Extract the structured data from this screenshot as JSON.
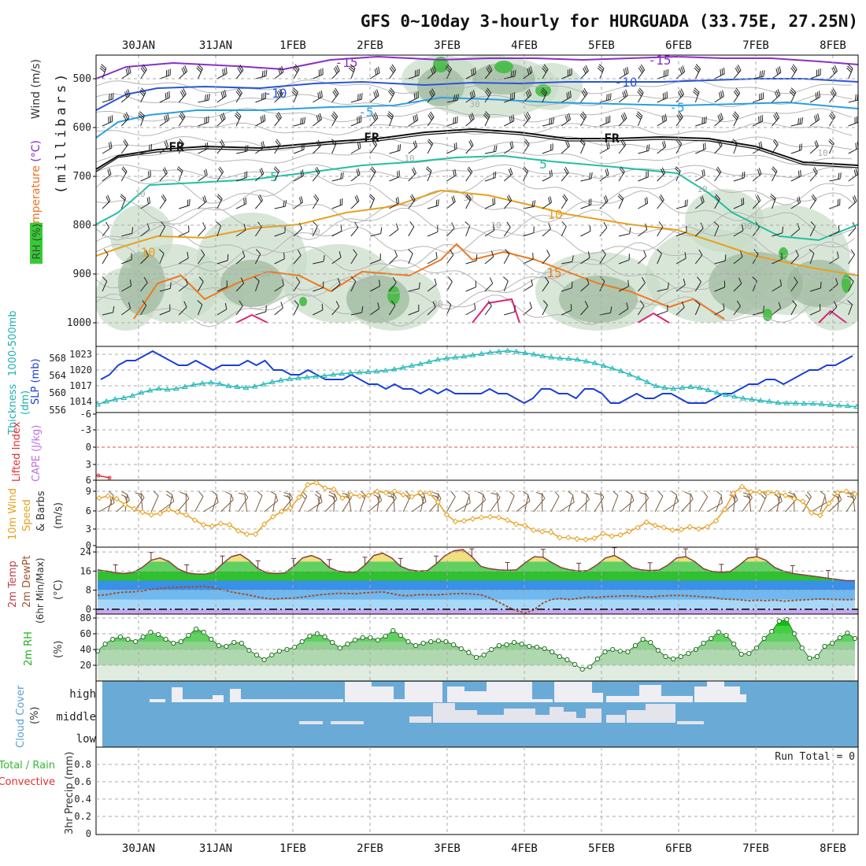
{
  "title": "GFS 0~10day 3-hourly for HURGUADA (33.75E, 27.25N)",
  "dates": [
    "30JAN",
    "31JAN",
    "1FEB",
    "2FEB",
    "3FEB",
    "4FEB",
    "5FEB",
    "6FEB",
    "7FEB",
    "8FEB"
  ],
  "panels": {
    "upper": {
      "label_wind": "Wind (m/s)",
      "label_temp1": "Temperature ",
      "label_temp2": "(°C)",
      "label_rh": "RH (%)",
      "label_mb": "(millibars)",
      "yticks": [
        "500",
        "600",
        "700",
        "800",
        "900",
        "1000"
      ],
      "contour_labels": [
        "-15",
        "-15",
        "-10",
        "-10",
        "-5",
        "-5",
        "FR",
        "FR",
        "FR",
        "5",
        "5",
        "10",
        "10",
        "10",
        "15",
        "10",
        "10",
        "10",
        "30",
        "30",
        "30",
        "30",
        "10",
        "10",
        "30"
      ]
    },
    "slp": {
      "label_thk1": "Thickness",
      "label_thk2": "1000-500mb",
      "label_thk3": "(dm)",
      "label_slp": "SLP (mb)",
      "yticks_slp": [
        "1014",
        "1017",
        "1020",
        "1023"
      ],
      "yticks_thk": [
        "556",
        "560",
        "564",
        "568"
      ]
    },
    "cape": {
      "label_li": "Lifted Index",
      "label_cape": "CAPE (J/kg)",
      "yticks": [
        "-6",
        "-3",
        "0",
        "3",
        "6"
      ]
    },
    "wind10": {
      "label1": "10m Wind",
      "label2": "Speed",
      "label3": "& Barbs",
      "label4": "(m/s)",
      "yticks": [
        "0",
        "3",
        "6",
        "9"
      ]
    },
    "temp2m": {
      "label1": "2m Temp",
      "label2": "2m DewPt",
      "label3": "(6hr Min/Max)",
      "label4": "(°C)",
      "yticks": [
        "0",
        "8",
        "16",
        "24"
      ]
    },
    "rh2m": {
      "label1": "2m RH",
      "label2": "(%)",
      "yticks": [
        "20",
        "40",
        "60",
        "80"
      ]
    },
    "cloud": {
      "label1": "Cloud Cover",
      "label2": "(%)",
      "levels": [
        "high",
        "middle",
        "low"
      ]
    },
    "precip": {
      "label1": "Total / Rain",
      "label2": "Convective",
      "label3": "3hr Precip (mm)",
      "run_total": "Run Total = 0",
      "yticks": [
        "0",
        "0.2",
        "0.4",
        "0.6",
        "0.8"
      ]
    }
  },
  "colors": {
    "slp": "#1a3fd6",
    "thickness": "#20b8b8",
    "wind10": "#e8a020",
    "temp": "#f06020",
    "dewpt": "#a05030",
    "rh2m": "#20c020",
    "cloud_bg": "#6aaad6",
    "cloud_fill": "#eeeef4",
    "li": "#e03030"
  },
  "chart_data": [
    {
      "type": "line",
      "title": "SLP (mb)",
      "ylim": [
        1011,
        1025
      ],
      "values": [
        1018,
        1019,
        1021,
        1022,
        1022,
        1023,
        1024,
        1023,
        1022,
        1021,
        1021,
        1022,
        1021,
        1020,
        1021,
        1021,
        1021,
        1022,
        1021,
        1022,
        1020,
        1020,
        1019,
        1019,
        1020,
        1019,
        1018,
        1018,
        1018,
        1019,
        1018,
        1017,
        1017,
        1016,
        1017,
        1016,
        1016,
        1015,
        1016,
        1015,
        1016,
        1015,
        1015,
        1015,
        1015,
        1016,
        1015,
        1015,
        1014,
        1013,
        1014,
        1016,
        1016,
        1015,
        1015,
        1014,
        1016,
        1016,
        1015,
        1013,
        1013,
        1014,
        1015,
        1014,
        1014,
        1015,
        1015,
        1014,
        1013,
        1013,
        1013,
        1014,
        1015,
        1015,
        1016,
        1017,
        1017,
        1018,
        1018,
        1017,
        1018,
        1019,
        1020,
        1020,
        1021,
        1021,
        1022,
        1023
      ]
    },
    {
      "type": "line",
      "title": "Thickness 1000-500mb (dm)",
      "ylim": [
        555,
        570
      ],
      "values": [
        556.8,
        557.5,
        558,
        558.3,
        558.8,
        559.5,
        560,
        560.4,
        560.2,
        560.4,
        560.8,
        561.3,
        561.6,
        561.8,
        561.5,
        561,
        560.8,
        560.6,
        560.9,
        561.4,
        561.9,
        562.3,
        562.6,
        562.8,
        563,
        563.2,
        563.3,
        563.6,
        563.8,
        564,
        564.1,
        564.2,
        564.3,
        564.5,
        564.8,
        565.2,
        565.6,
        566,
        566.5,
        567,
        567.3,
        567.5,
        567.7,
        568,
        568.3,
        568.6,
        568.8,
        569,
        568.8,
        568.5,
        568.2,
        567.8,
        567.5,
        567.3,
        567.2,
        567,
        566.6,
        566.2,
        565.6,
        565,
        564.4,
        563.6,
        562.8,
        561.9,
        561,
        560.6,
        560.4,
        560.6,
        560.8,
        560.6,
        560.1,
        559.5,
        559,
        558.6,
        558.2,
        558,
        557.7,
        557.5,
        557.2,
        557.1,
        557.1,
        557,
        557,
        556.9,
        556.7,
        556.6,
        556.5,
        556.3
      ]
    },
    {
      "type": "line",
      "title": "10m Wind Speed (m/s)",
      "ylim": [
        0,
        10
      ],
      "values": [
        7.1,
        7.4,
        7.0,
        6.1,
        5.5,
        5.0,
        4.6,
        4.8,
        5.4,
        5.0,
        4.6,
        3.8,
        3.1,
        2.9,
        3.3,
        3.1,
        2.2,
        1.7,
        1.7,
        3.2,
        4.3,
        5.1,
        5.6,
        7.2,
        9.1,
        9.4,
        8.6,
        8.4,
        7.1,
        7.6,
        7.4,
        7.5,
        8.1,
        7.9,
        8.1,
        7.6,
        7.3,
        7.9,
        7.8,
        6.5,
        4.6,
        3.6,
        3.7,
        4.0,
        4.2,
        4.3,
        4.2,
        3.8,
        3.2,
        3.0,
        2.3,
        2.1,
        2.0,
        1.2,
        1.2,
        1.0,
        0.9,
        1.1,
        1.8,
        1.4,
        1.6,
        2.1,
        2.7,
        3.5,
        3.0,
        2.7,
        2.3,
        2.4,
        2.8,
        2.5,
        2.8,
        3.7,
        5.4,
        7.8,
        8.8,
        8.0,
        8.0,
        7.9,
        7.9,
        7.5,
        7.0,
        6.6,
        4.9,
        4.5,
        6.3,
        7.9,
        8.1,
        7.7
      ]
    },
    {
      "type": "area",
      "title": "2m Temp (°C)",
      "ylim": [
        -2,
        26
      ],
      "values": [
        16.5,
        16,
        15.3,
        15,
        15.5,
        17.5,
        20.5,
        21.5,
        20,
        17,
        15.3,
        14.8,
        14.7,
        15.5,
        19,
        22,
        23,
        20.5,
        17,
        15.3,
        15,
        15.2,
        18,
        21.5,
        22.5,
        21,
        17.5,
        16,
        15.5,
        15.5,
        18.5,
        22.5,
        23.5,
        21.5,
        18,
        16.5,
        16,
        16.2,
        19,
        22.5,
        24.5,
        25,
        22,
        18,
        17,
        16.5,
        16.3,
        16.5,
        19.5,
        22,
        21.8,
        19.5,
        17.5,
        16.5,
        16,
        16.2,
        18.5,
        21.5,
        22.5,
        20.5,
        17.5,
        16.5,
        16.2,
        16.4,
        18.5,
        21.5,
        22,
        20,
        17,
        15.8,
        15.5,
        15.8,
        18.5,
        21.5,
        22,
        20.5,
        17.5,
        16,
        15,
        14.5,
        14,
        13.5,
        13,
        12.5,
        12,
        12
      ]
    },
    {
      "type": "line",
      "title": "2m DewPt (°C)",
      "ylim": [
        -2,
        26
      ],
      "values": [
        5.8,
        6.1,
        6.8,
        7.2,
        7.3,
        7.7,
        8.3,
        8.8,
        9.0,
        9.2,
        9.3,
        9.4,
        9.6,
        9.0,
        8.2,
        7.3,
        6.6,
        6.0,
        5.1,
        4.5,
        4.3,
        4.6,
        4.7,
        5.1,
        5.6,
        6.1,
        6.4,
        6.7,
        6.6,
        6.5,
        6.9,
        7.1,
        7.3,
        6.6,
        5.8,
        5.7,
        6.1,
        6.1,
        6.0,
        6.3,
        6.5,
        6.6,
        6.4,
        6.1,
        4.8,
        3.0,
        1.1,
        -0.6,
        -1.5,
        -0.2,
        2.7,
        4.2,
        4.5,
        4.1,
        4.6,
        5.1,
        4.9,
        5.3,
        5.4,
        5.6,
        5.6,
        5.3,
        5.1,
        5.5,
        5.7,
        5.8,
        5.7,
        5.5,
        5.1,
        5.0,
        4.4,
        4.2,
        4.0,
        3.6,
        3.8,
        3.6,
        3.9,
        3.4,
        3.7,
        3.9,
        4.1,
        4.3,
        4.2,
        4.1,
        4.0,
        4.1
      ]
    },
    {
      "type": "area",
      "title": "2m RH (%)",
      "ylim": [
        0,
        85
      ],
      "values": [
        38,
        47,
        53,
        56,
        53,
        50,
        56,
        62,
        59,
        53,
        48,
        50,
        58,
        66,
        62,
        53,
        45,
        44,
        49,
        48,
        39,
        33,
        27,
        33,
        38,
        40,
        43,
        50,
        57,
        60,
        56,
        49,
        42,
        47,
        52,
        55,
        55,
        52,
        57,
        64,
        58,
        50,
        45,
        48,
        50,
        51,
        50,
        46,
        41,
        36,
        30,
        33,
        40,
        45,
        46,
        49,
        47,
        44,
        43,
        41,
        37,
        31,
        27,
        21,
        15,
        18,
        28,
        37,
        40,
        38,
        37,
        45,
        53,
        49,
        39,
        31,
        28,
        31,
        35,
        40,
        48,
        54,
        62,
        58,
        47,
        34,
        35,
        42,
        54,
        63,
        76,
        78,
        60,
        42,
        29,
        31,
        44,
        48,
        55,
        61,
        54
      ]
    },
    {
      "type": "line",
      "title": "3hr Precip (mm)",
      "ylim": [
        0,
        0.9
      ],
      "values": [
        0,
        0,
        0,
        0,
        0,
        0,
        0,
        0,
        0,
        0
      ]
    }
  ]
}
